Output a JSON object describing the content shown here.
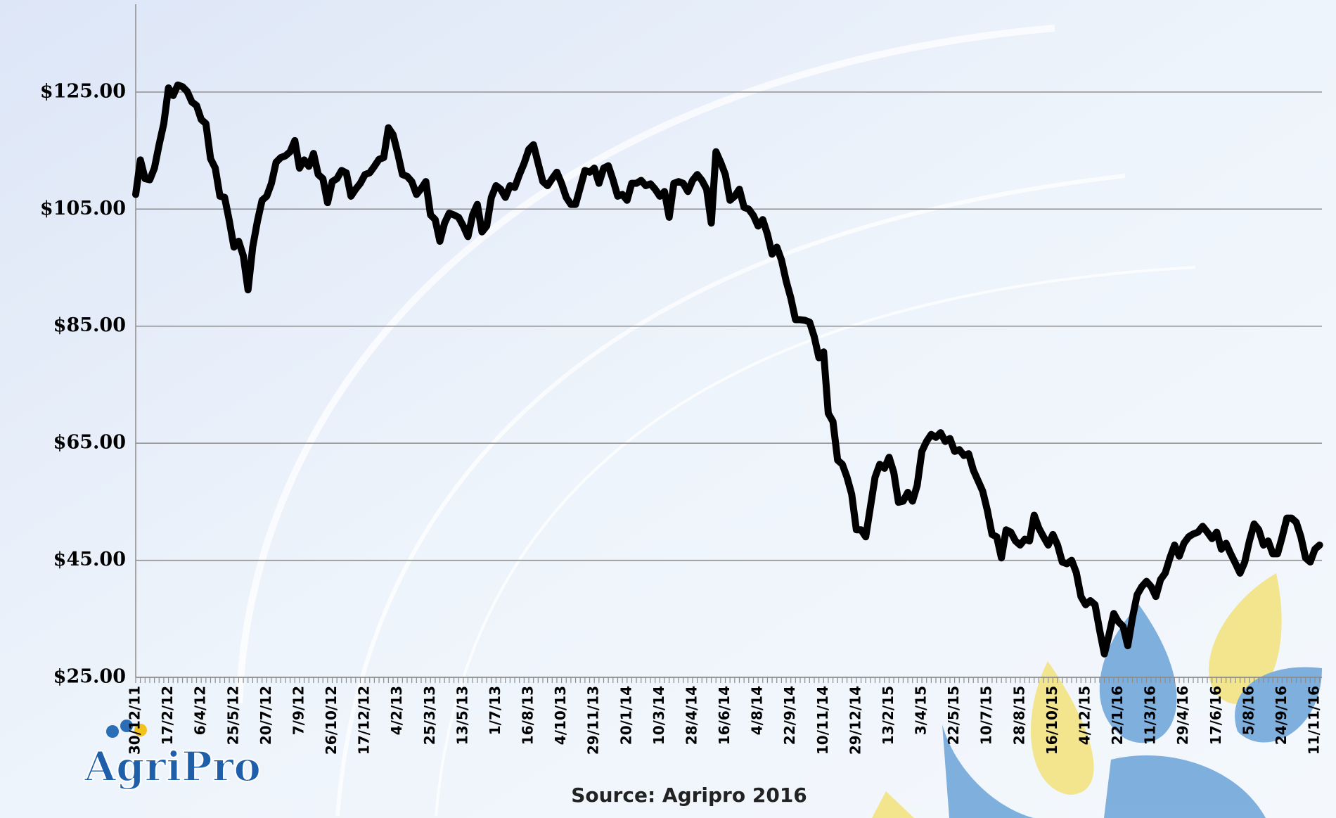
{
  "chart_data": {
    "type": "line",
    "caption": "Source: Agripro 2016",
    "logo_text": "AgriPro",
    "color": "#000000",
    "grid": true,
    "ylim": [
      25,
      140
    ],
    "yticks": [
      {
        "value": 25,
        "label": "$25.00"
      },
      {
        "value": 45,
        "label": "$45.00"
      },
      {
        "value": 65,
        "label": "$65.00"
      },
      {
        "value": 85,
        "label": "$85.00"
      },
      {
        "value": 105,
        "label": "$105.00"
      },
      {
        "value": 125,
        "label": "$125.00"
      }
    ],
    "categories": [
      "30/12/11",
      null,
      null,
      null,
      null,
      null,
      null,
      "17/2/12",
      null,
      null,
      null,
      null,
      null,
      null,
      "6/4/12",
      null,
      null,
      null,
      null,
      null,
      null,
      "25/5/12",
      null,
      null,
      null,
      null,
      null,
      null,
      "20/7/12",
      null,
      null,
      null,
      null,
      null,
      null,
      "7/9/12",
      null,
      null,
      null,
      null,
      null,
      null,
      "26/10/12",
      null,
      null,
      null,
      null,
      null,
      null,
      "17/12/12",
      null,
      null,
      null,
      null,
      null,
      null,
      "4/2/13",
      null,
      null,
      null,
      null,
      null,
      null,
      "25/3/13",
      null,
      null,
      null,
      null,
      null,
      null,
      "13/5/13",
      null,
      null,
      null,
      null,
      null,
      null,
      "1/7/13",
      null,
      null,
      null,
      null,
      null,
      null,
      "16/8/13",
      null,
      null,
      null,
      null,
      null,
      null,
      "4/10/13",
      null,
      null,
      null,
      null,
      null,
      null,
      "29/11/13",
      null,
      null,
      null,
      null,
      null,
      null,
      "20/1/14",
      null,
      null,
      null,
      null,
      null,
      null,
      "10/3/14",
      null,
      null,
      null,
      null,
      null,
      null,
      "28/4/14",
      null,
      null,
      null,
      null,
      null,
      null,
      "16/6/14",
      null,
      null,
      null,
      null,
      null,
      null,
      "4/8/14",
      null,
      null,
      null,
      null,
      null,
      null,
      "22/9/14",
      null,
      null,
      null,
      null,
      null,
      null,
      "10/11/14",
      null,
      null,
      null,
      null,
      null,
      null,
      "29/12/14",
      null,
      null,
      null,
      null,
      null,
      null,
      "13/2/15",
      null,
      null,
      null,
      null,
      null,
      null,
      "3/4/15",
      null,
      null,
      null,
      null,
      null,
      null,
      "22/5/15",
      null,
      null,
      null,
      null,
      null,
      null,
      "10/7/15",
      null,
      null,
      null,
      null,
      null,
      null,
      "28/8/15",
      null,
      null,
      null,
      null,
      null,
      null,
      "16/10/15",
      null,
      null,
      null,
      null,
      null,
      null,
      "4/12/15",
      null,
      null,
      null,
      null,
      null,
      null,
      "22/1/16",
      null,
      null,
      null,
      null,
      null,
      null,
      "11/3/16",
      null,
      null,
      null,
      null,
      null,
      null,
      "29/4/16",
      null,
      null,
      null,
      null,
      null,
      null,
      "17/6/16",
      null,
      null,
      null,
      null,
      null,
      null,
      "5/8/16",
      null,
      null,
      null,
      null,
      null,
      null,
      "24/9/16",
      null,
      null,
      null,
      null,
      null,
      null,
      "11/11/16",
      null
    ],
    "values": [
      107.5,
      113.4,
      110.2,
      110,
      112,
      116,
      119.6,
      125.7,
      124.4,
      126.2,
      125.9,
      125.1,
      123.3,
      122.7,
      120.3,
      119.6,
      113.6,
      112,
      107.2,
      107,
      103,
      98.5,
      99.5,
      97,
      91.2,
      98.5,
      102.9,
      106.5,
      107.2,
      109.4,
      113,
      113.8,
      114.1,
      114.8,
      116.7,
      112,
      113.4,
      112.3,
      114.5,
      110.9,
      110.2,
      106.1,
      109.7,
      110.2,
      111.6,
      111.2,
      107.2,
      108.4,
      109.4,
      110.9,
      111.2,
      112.3,
      113.5,
      113.8,
      118.9,
      117.7,
      114.5,
      110.9,
      110.6,
      109.7,
      107.5,
      108.5,
      109.7,
      104,
      103.2,
      99.5,
      102.6,
      104.3,
      104,
      103.6,
      102.1,
      100.3,
      104,
      105.8,
      101.1,
      102.1,
      107,
      109,
      108.4,
      107,
      109,
      108.7,
      110.9,
      112.8,
      115.2,
      116,
      112.8,
      109.7,
      109,
      110.2,
      111.3,
      109.4,
      107,
      105.8,
      105.8,
      108.7,
      111.6,
      111.3,
      112,
      109.4,
      112,
      112.4,
      110,
      107.2,
      107.5,
      106.5,
      109.4,
      109.4,
      109.9,
      109,
      109.3,
      108.4,
      107.2,
      108,
      103.6,
      109.4,
      109.7,
      109.4,
      108,
      109.9,
      110.9,
      109.9,
      108.4,
      102.6,
      114.8,
      113,
      110.9,
      106.5,
      107.2,
      108.4,
      105.3,
      105,
      103.9,
      102.1,
      103.2,
      100.7,
      97.3,
      98.5,
      96.3,
      92.7,
      89.8,
      86.1,
      86.1,
      86,
      85.7,
      83.2,
      79.6,
      80.6,
      70.1,
      68.7,
      62.1,
      61.4,
      59.2,
      56.3,
      50.2,
      50.2,
      49,
      54.1,
      59.2,
      61.4,
      60.7,
      62.6,
      60,
      54.9,
      55.1,
      56.6,
      55.1,
      57.8,
      63.6,
      65.3,
      66.5,
      66,
      66.8,
      65.3,
      65.8,
      63.6,
      63.9,
      62.9,
      63.2,
      60.4,
      58.6,
      56.8,
      53.5,
      49.4,
      49,
      45.4,
      50.2,
      49.8,
      48.3,
      47.6,
      48.6,
      48.3,
      52.7,
      50.5,
      49,
      47.6,
      49.4,
      47.6,
      44.7,
      44.4,
      45,
      42.9,
      38.8,
      37.4,
      38.1,
      37.4,
      33,
      29,
      32.3,
      35.9,
      34.5,
      33.7,
      30.4,
      35.2,
      39.1,
      40.5,
      41.4,
      40.5,
      38.8,
      41.7,
      42.8,
      45.4,
      47.6,
      45.7,
      47.9,
      49,
      49.5,
      49.8,
      50.8,
      49.8,
      48.7,
      49.8,
      46.9,
      47.9,
      46.1,
      44.5,
      42.8,
      44.7,
      48.3,
      51.2,
      50.2,
      47.6,
      48.3,
      46.1,
      46.1,
      49,
      52.2,
      52.2,
      51.5,
      49,
      45.4,
      44.7,
      46.9,
      47.6
    ]
  }
}
